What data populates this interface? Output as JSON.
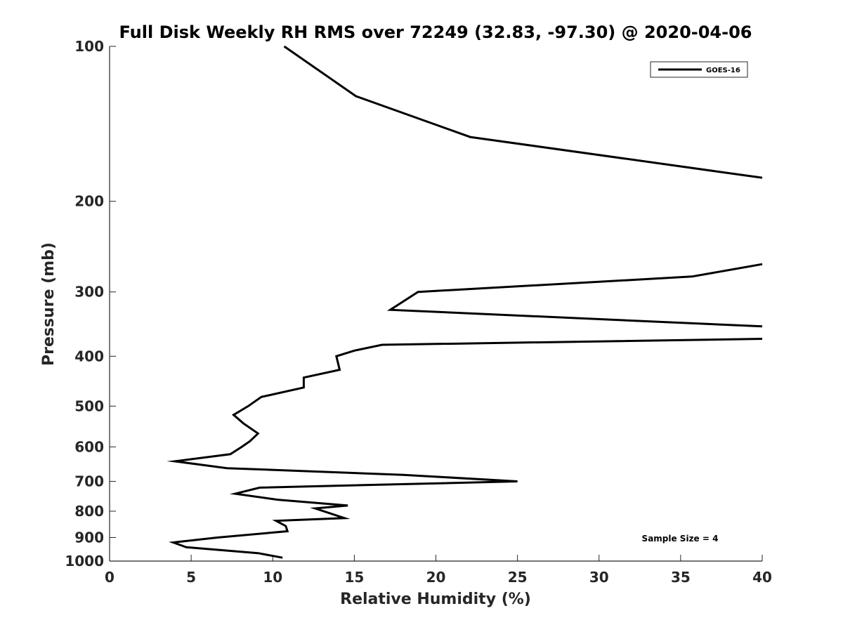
{
  "chart_data": {
    "type": "line",
    "title": "Full Disk Weekly RH RMS over 72249 (32.83, -97.30) @ 2020-04-06",
    "xlabel": "Relative Humidity (%)",
    "ylabel": "Pressure (mb)",
    "xlim": [
      0,
      40
    ],
    "ylim": [
      100,
      1000
    ],
    "yscale": "log",
    "y_reversed": true,
    "grid": false,
    "legend_position": "top-right",
    "x_ticks": [
      0,
      5,
      10,
      15,
      20,
      25,
      30,
      35,
      40
    ],
    "y_ticks": [
      100,
      200,
      300,
      400,
      500,
      600,
      700,
      800,
      900,
      1000
    ],
    "series": [
      {
        "name": "GOES-16",
        "color": "#000000",
        "points": [
          [
            10.7,
            100
          ],
          [
            15.1,
            125
          ],
          [
            22.1,
            150
          ],
          [
            37.2,
            175
          ],
          [
            40.0,
            180
          ],
          null,
          [
            40.0,
            265
          ],
          [
            35.7,
            280
          ],
          [
            18.9,
            300
          ],
          [
            17.2,
            325
          ],
          [
            40.0,
            350
          ],
          null,
          [
            40.0,
            370
          ],
          [
            16.7,
            380
          ],
          [
            15.0,
            390
          ],
          [
            13.9,
            400
          ],
          [
            14.1,
            425
          ],
          [
            11.9,
            440
          ],
          [
            11.9,
            460
          ],
          [
            9.3,
            480
          ],
          [
            8.5,
            500
          ],
          [
            7.6,
            520
          ],
          [
            8.2,
            540
          ],
          [
            9.1,
            565
          ],
          [
            8.6,
            585
          ],
          [
            8.1,
            600
          ],
          [
            7.4,
            620
          ],
          [
            4.0,
            640
          ],
          [
            7.2,
            660
          ],
          [
            18.0,
            680
          ],
          [
            25.0,
            700
          ],
          [
            9.2,
            720
          ],
          [
            7.7,
            740
          ],
          [
            10.3,
            760
          ],
          [
            14.6,
            780
          ],
          [
            12.6,
            790
          ],
          [
            14.4,
            825
          ],
          [
            10.2,
            835
          ],
          [
            10.8,
            855
          ],
          [
            10.9,
            875
          ],
          [
            6.6,
            900
          ],
          [
            3.9,
            920
          ],
          [
            4.7,
            940
          ],
          [
            9.1,
            965
          ],
          [
            10.6,
            985
          ]
        ]
      }
    ],
    "annotations": [
      "Sample Size = 4"
    ]
  }
}
